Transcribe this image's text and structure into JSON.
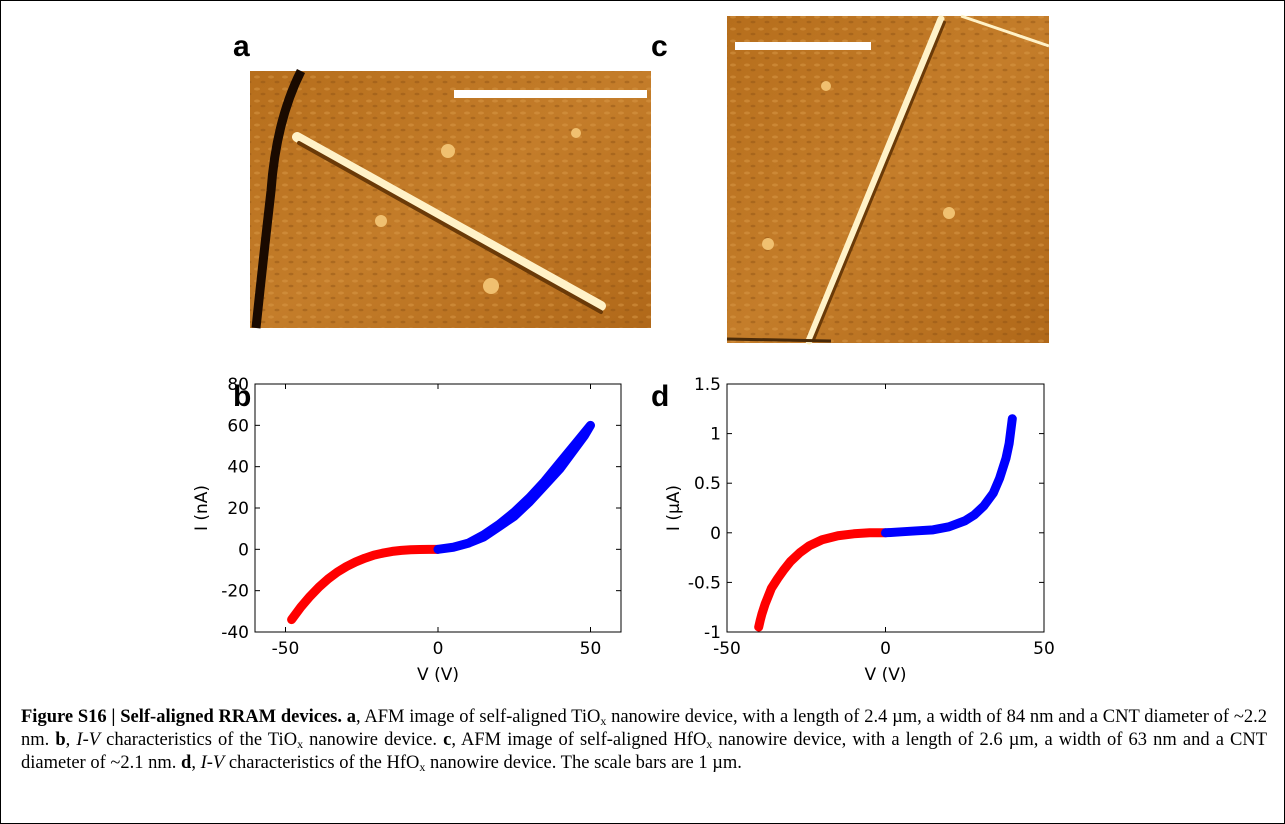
{
  "figure": {
    "labels": [
      "a",
      "b",
      "c",
      "d"
    ],
    "caption": [
      {
        "style": "b",
        "text": "Figure S16 | Self-aligned RRAM devices. a"
      },
      {
        "style": "n",
        "text": ", AFM image of self-aligned TiO"
      },
      {
        "style": "sub",
        "text": "x"
      },
      {
        "style": "n",
        "text": " nanowire device, with a length of 2.4 µm, a width of 84 nm and a CNT diameter of ~2.2 nm. "
      },
      {
        "style": "b",
        "text": "b"
      },
      {
        "style": "n",
        "text": ", "
      },
      {
        "style": "i",
        "text": "I-V"
      },
      {
        "style": "n",
        "text": " characteristics of the TiO"
      },
      {
        "style": "sub",
        "text": "x"
      },
      {
        "style": "n",
        "text": " nanowire device. "
      },
      {
        "style": "b",
        "text": "c"
      },
      {
        "style": "n",
        "text": ", AFM image of self-aligned HfO"
      },
      {
        "style": "sub",
        "text": "x"
      },
      {
        "style": "n",
        "text": " nanowire device, with a length of 2.6 µm, a width of 63 nm and a CNT diameter of ~2.1 nm. "
      },
      {
        "style": "b",
        "text": "d"
      },
      {
        "style": "n",
        "text": ", "
      },
      {
        "style": "i",
        "text": "I-V"
      },
      {
        "style": "n",
        "text": " characteristics of the HfO"
      },
      {
        "style": "sub",
        "text": "x"
      },
      {
        "style": "n",
        "text": " nanowire device. The scale bars are 1 µm."
      }
    ]
  },
  "chart_data": [
    {
      "type": "scatter",
      "xlabel": "V (V)",
      "ylabel": "I (nA)",
      "xlim": [
        -60,
        60
      ],
      "xticks": [
        -50,
        0,
        50
      ],
      "ylim": [
        -40,
        80
      ],
      "yticks": [
        -40,
        -20,
        0,
        20,
        40,
        60,
        80
      ],
      "series": [
        {
          "color": "#ff0000",
          "x": [
            -48,
            -45,
            -42,
            -39,
            -36,
            -33,
            -30,
            -27,
            -24,
            -21,
            -18,
            -15,
            -12,
            -9,
            -6,
            -3,
            0
          ],
          "values": [
            -34,
            -28,
            -22.8,
            -18.2,
            -14.3,
            -11,
            -8.3,
            -6.1,
            -4.3,
            -2.8,
            -1.8,
            -1,
            -0.5,
            -0.2,
            -0.1,
            0,
            0
          ]
        },
        {
          "color": "#0000ff",
          "x": [
            0,
            5,
            10,
            15,
            20,
            25,
            30,
            35,
            40,
            45,
            50,
            48,
            44,
            40,
            35,
            30,
            25,
            20,
            15,
            10,
            5,
            0
          ],
          "values": [
            0,
            1,
            3,
            7,
            12,
            18,
            25,
            33,
            42,
            51,
            60,
            55,
            47,
            39,
            31,
            23,
            16,
            11,
            6,
            3,
            1,
            0
          ]
        }
      ]
    },
    {
      "type": "scatter",
      "xlabel": "V (V)",
      "ylabel": "I (µA)",
      "xlim": [
        -50,
        50
      ],
      "xticks": [
        -50,
        0,
        50
      ],
      "ylim": [
        -1,
        1.5
      ],
      "yticks": [
        -1,
        -0.5,
        0,
        0.5,
        1,
        1.5
      ],
      "series": [
        {
          "color": "#ff0000",
          "x": [
            -40,
            -39.5,
            -39,
            -38,
            -37,
            -36,
            -34,
            -32,
            -30,
            -27,
            -24,
            -20,
            -15,
            -10,
            -5,
            0
          ],
          "values": [
            -0.95,
            -0.88,
            -0.82,
            -0.72,
            -0.64,
            -0.56,
            -0.46,
            -0.37,
            -0.29,
            -0.2,
            -0.13,
            -0.07,
            -0.03,
            -0.01,
            0,
            0
          ]
        },
        {
          "color": "#0000ff",
          "x": [
            0,
            5,
            10,
            15,
            20,
            25,
            28,
            31,
            34,
            36,
            38,
            39,
            40
          ],
          "values": [
            0,
            0.01,
            0.02,
            0.03,
            0.06,
            0.12,
            0.18,
            0.27,
            0.4,
            0.55,
            0.75,
            0.9,
            1.15
          ]
        }
      ]
    }
  ]
}
